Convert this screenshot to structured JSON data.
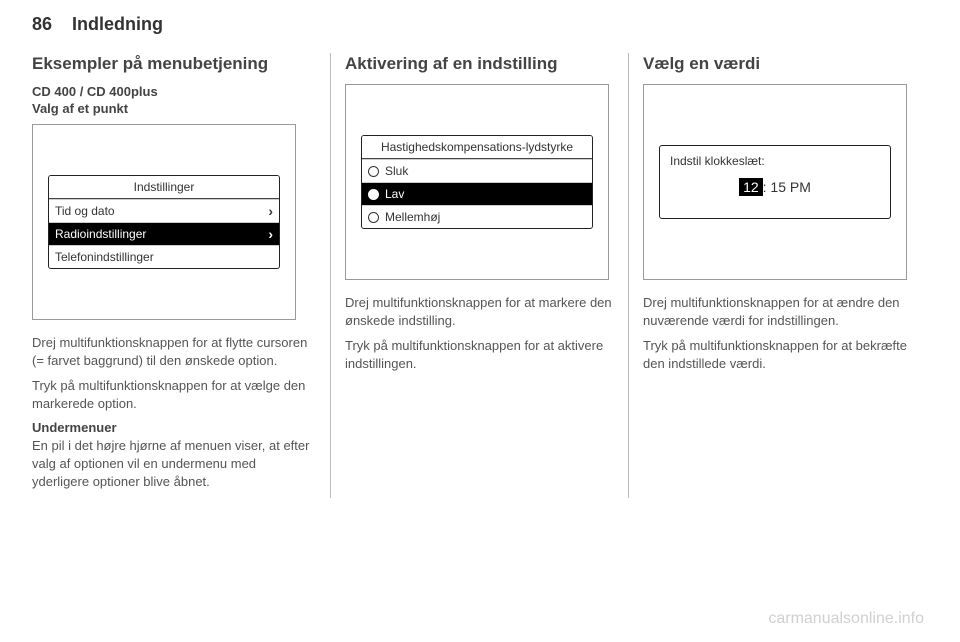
{
  "page": {
    "number": "86",
    "section": "Indledning"
  },
  "col1": {
    "heading": "Eksempler på menubetjening",
    "subheading": "CD 400 / CD 400plus",
    "sub2": "Valg af et punkt",
    "mock": {
      "title": "Indstillinger",
      "rows": [
        {
          "label": "Tid og dato",
          "selected": false,
          "arrow": true
        },
        {
          "label": "Radioindstillinger",
          "selected": true,
          "arrow": true
        },
        {
          "label": "Telefonindstillinger",
          "selected": false,
          "arrow": false
        }
      ]
    },
    "p1": "Drej multifunktionsknappen for at flytte cursoren (= farvet baggrund) til den ønskede option.",
    "p2": "Tryk på multifunktionsknappen for at vælge den markerede option.",
    "sub3": "Undermenuer",
    "p3": "En pil i det højre hjørne af menuen viser, at efter valg af optionen vil en undermenu med yderligere optioner blive åbnet."
  },
  "col2": {
    "heading": "Aktivering af en indstilling",
    "mock": {
      "title": "Hastighedskompensations-lydstyrke",
      "rows": [
        {
          "label": "Sluk",
          "selected": false,
          "filled": false
        },
        {
          "label": "Lav",
          "selected": true,
          "filled": true
        },
        {
          "label": "Mellemhøj",
          "selected": false,
          "filled": false
        }
      ]
    },
    "p1": "Drej multifunktionsknappen for at markere den ønskede indstilling.",
    "p2": "Tryk på multifunktionsknappen for at aktivere indstillingen."
  },
  "col3": {
    "heading": "Vælg en værdi",
    "mock": {
      "label": "Indstil klokkeslæt:",
      "hour": "12",
      "rest": ": 15 PM"
    },
    "p1": "Drej multifunktionsknappen for at ændre den nuværende værdi for indstillingen.",
    "p2": "Tryk på multifunktionsknappen for at bekræfte den indstillede værdi."
  },
  "watermark": "carmanualsonline.info"
}
